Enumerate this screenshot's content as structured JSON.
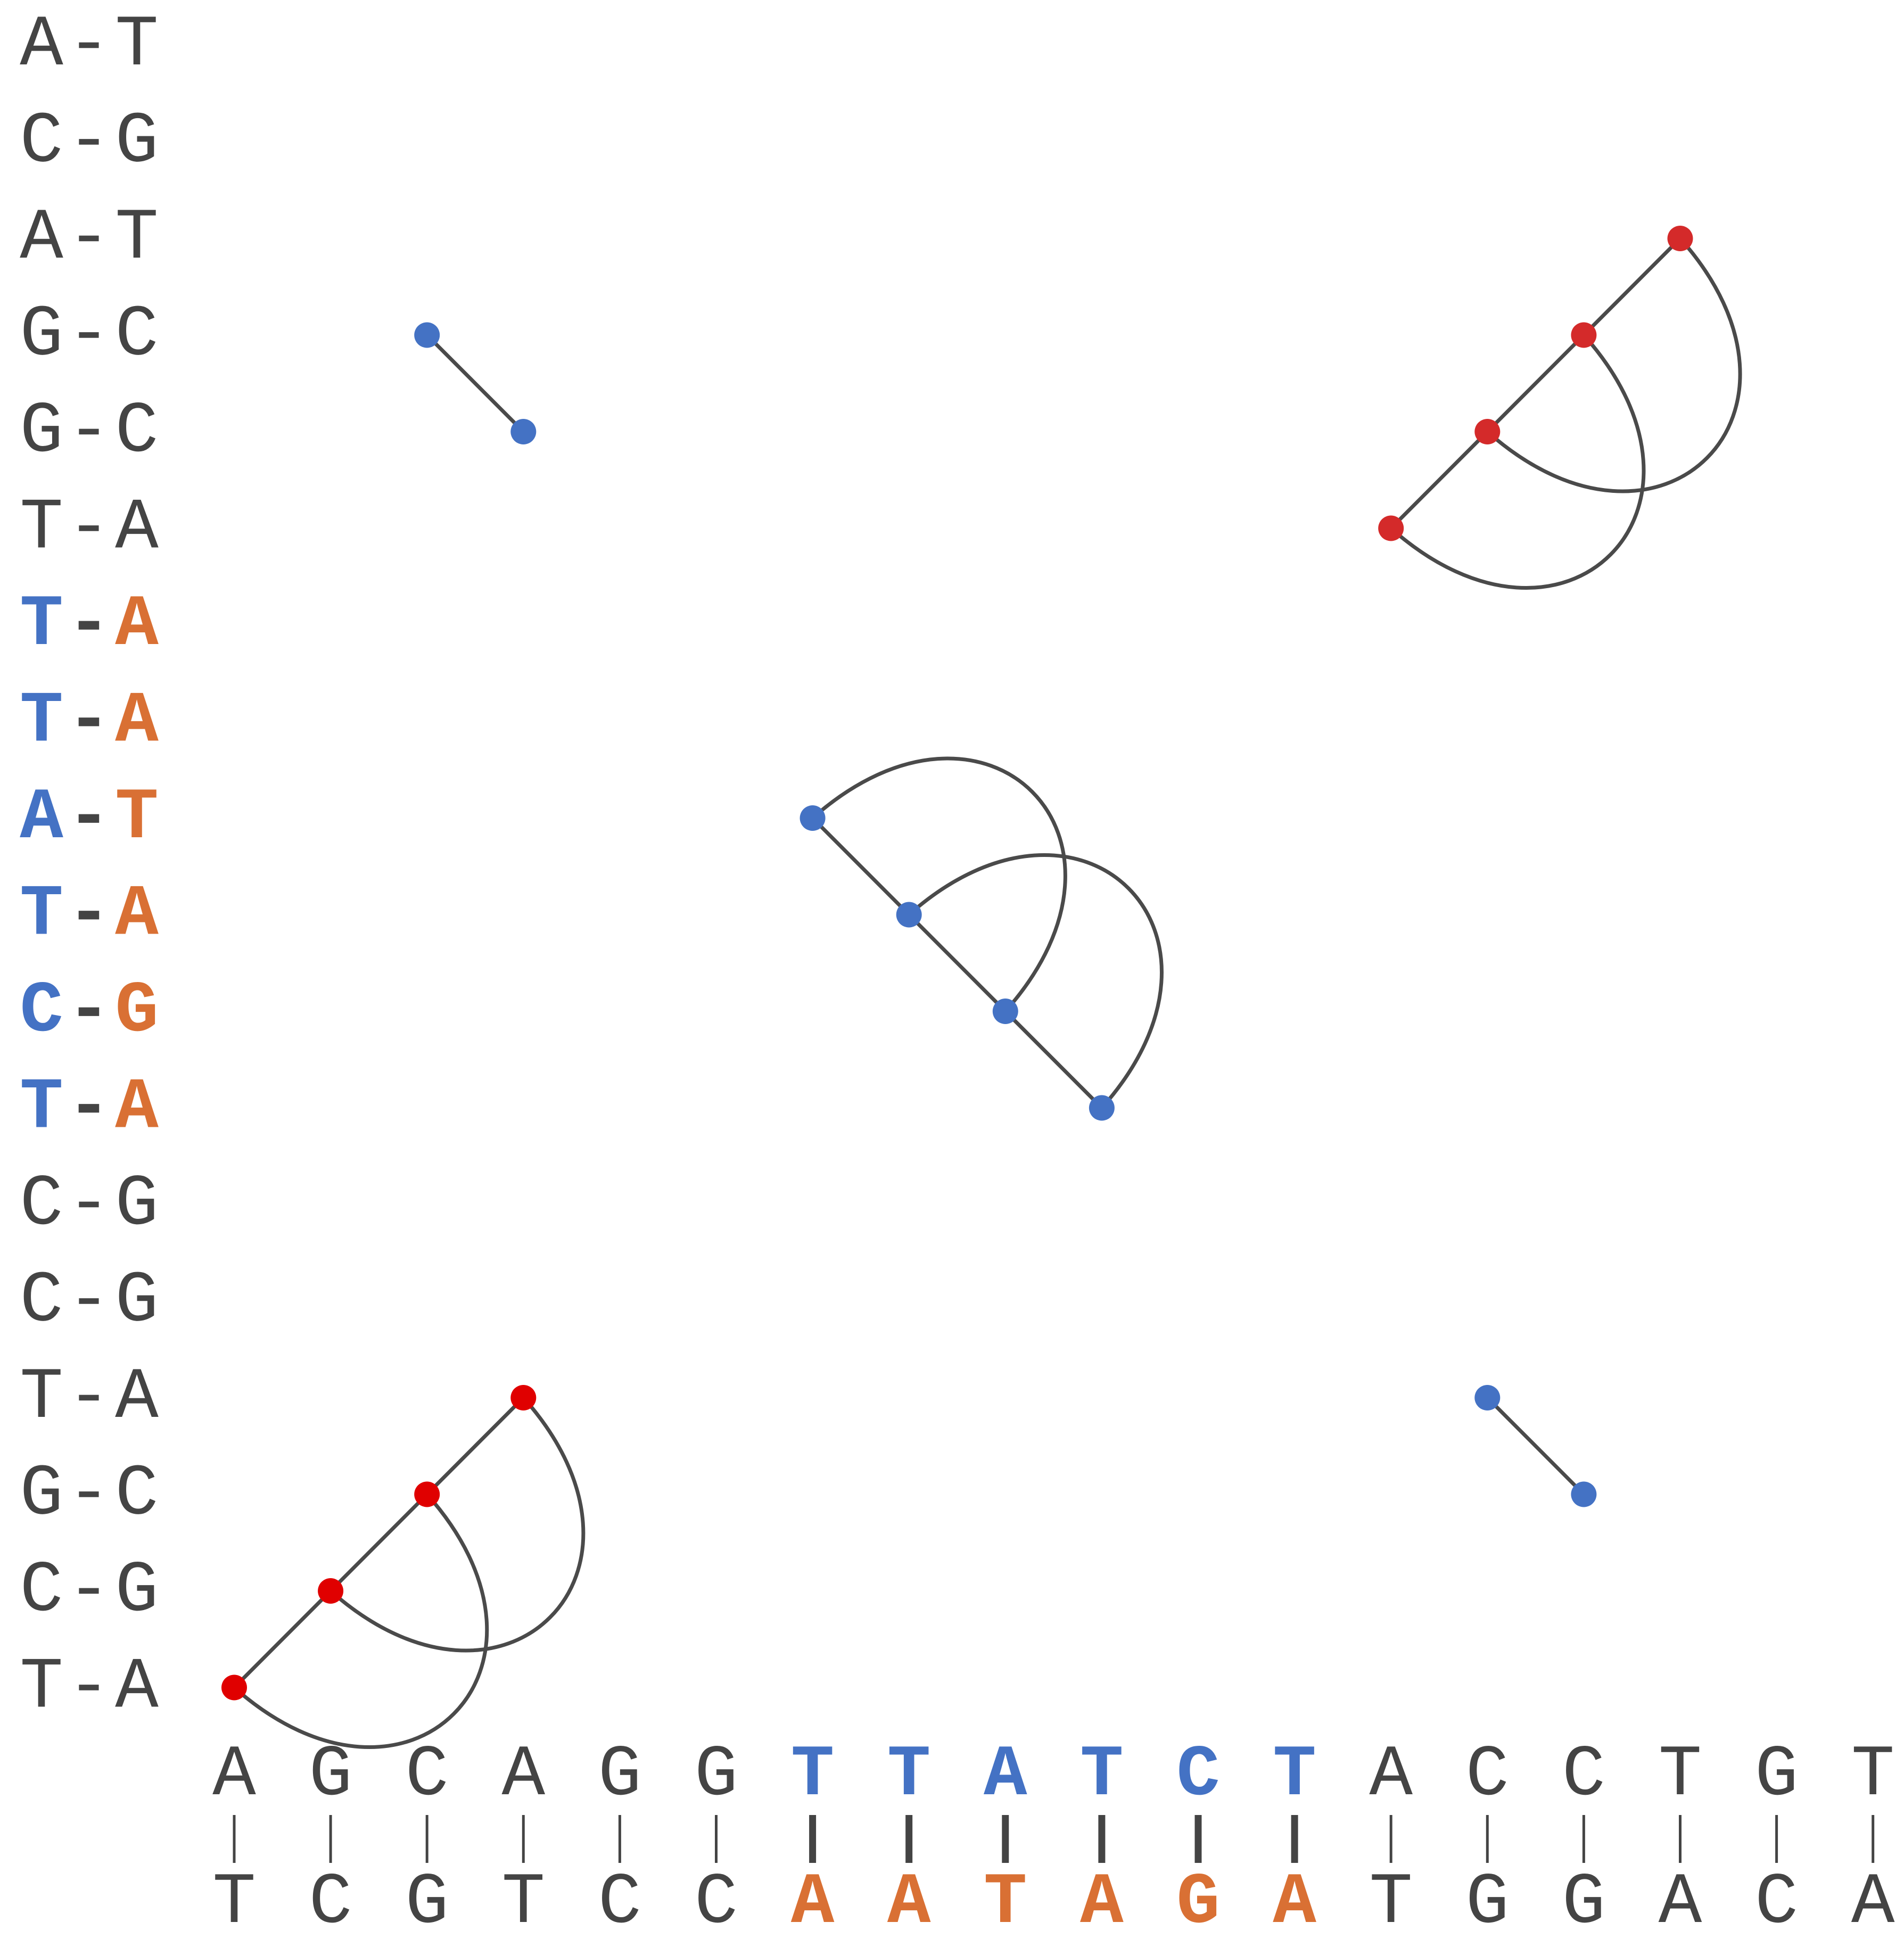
{
  "colors": {
    "text": "#444444",
    "highlight_top": "#4472c4",
    "highlight_bottom": "#d97034",
    "blue_dot": "#4472c4",
    "red_dot": "#d42a2a",
    "bright_red_dot": "#e00000",
    "line": "#4a4a4a"
  },
  "vertical_pairs": [
    {
      "left": "A",
      "dash": "-",
      "right": "T",
      "highlight": false
    },
    {
      "left": "C",
      "dash": "-",
      "right": "G",
      "highlight": false
    },
    {
      "left": "A",
      "dash": "-",
      "right": "T",
      "highlight": false
    },
    {
      "left": "G",
      "dash": "-",
      "right": "C",
      "highlight": false
    },
    {
      "left": "G",
      "dash": "-",
      "right": "C",
      "highlight": false
    },
    {
      "left": "T",
      "dash": "-",
      "right": "A",
      "highlight": false
    },
    {
      "left": "T",
      "dash": "-",
      "right": "A",
      "highlight": true
    },
    {
      "left": "T",
      "dash": "-",
      "right": "A",
      "highlight": true
    },
    {
      "left": "A",
      "dash": "-",
      "right": "T",
      "highlight": true
    },
    {
      "left": "T",
      "dash": "-",
      "right": "A",
      "highlight": true
    },
    {
      "left": "C",
      "dash": "-",
      "right": "G",
      "highlight": true
    },
    {
      "left": "T",
      "dash": "-",
      "right": "A",
      "highlight": true
    },
    {
      "left": "C",
      "dash": "-",
      "right": "G",
      "highlight": false
    },
    {
      "left": "C",
      "dash": "-",
      "right": "G",
      "highlight": false
    },
    {
      "left": "T",
      "dash": "-",
      "right": "A",
      "highlight": false
    },
    {
      "left": "G",
      "dash": "-",
      "right": "C",
      "highlight": false
    },
    {
      "left": "C",
      "dash": "-",
      "right": "G",
      "highlight": false
    },
    {
      "left": "T",
      "dash": "-",
      "right": "A",
      "highlight": false
    }
  ],
  "horizontal_pairs": [
    {
      "top": "A",
      "bar": "|",
      "bottom": "T",
      "highlight": false
    },
    {
      "top": "G",
      "bar": "|",
      "bottom": "C",
      "highlight": false
    },
    {
      "top": "C",
      "bar": "|",
      "bottom": "G",
      "highlight": false
    },
    {
      "top": "A",
      "bar": "|",
      "bottom": "T",
      "highlight": false
    },
    {
      "top": "G",
      "bar": "|",
      "bottom": "C",
      "highlight": false
    },
    {
      "top": "G",
      "bar": "|",
      "bottom": "C",
      "highlight": false
    },
    {
      "top": "T",
      "bar": "|",
      "bottom": "A",
      "highlight": true
    },
    {
      "top": "T",
      "bar": "|",
      "bottom": "A",
      "highlight": true
    },
    {
      "top": "A",
      "bar": "|",
      "bottom": "T",
      "highlight": true
    },
    {
      "top": "T",
      "bar": "|",
      "bottom": "A",
      "highlight": true
    },
    {
      "top": "C",
      "bar": "|",
      "bottom": "G",
      "highlight": true
    },
    {
      "top": "T",
      "bar": "|",
      "bottom": "A",
      "highlight": true
    },
    {
      "top": "A",
      "bar": "|",
      "bottom": "T",
      "highlight": false
    },
    {
      "top": "C",
      "bar": "|",
      "bottom": "G",
      "highlight": false
    },
    {
      "top": "C",
      "bar": "|",
      "bottom": "G",
      "highlight": false
    },
    {
      "top": "T",
      "bar": "|",
      "bottom": "A",
      "highlight": false
    },
    {
      "top": "G",
      "bar": "|",
      "bottom": "C",
      "highlight": false
    },
    {
      "top": "T",
      "bar": "|",
      "bottom": "A",
      "highlight": false
    }
  ],
  "motifs": [
    {
      "color": "blue_dot",
      "points": [
        [
          2,
          3
        ],
        [
          3,
          4
        ]
      ]
    },
    {
      "color": "red_dot",
      "points": [
        [
          15,
          2
        ],
        [
          14,
          3
        ],
        [
          13,
          4
        ],
        [
          12,
          5
        ]
      ],
      "arcs": [
        [
          0,
          2
        ],
        [
          1,
          3
        ]
      ]
    },
    {
      "color": "blue_dot",
      "points": [
        [
          6,
          8
        ],
        [
          7,
          9
        ],
        [
          8,
          10
        ],
        [
          9,
          11
        ]
      ],
      "arcs": [
        [
          0,
          2
        ],
        [
          1,
          3
        ]
      ]
    },
    {
      "color": "bright_red_dot",
      "points": [
        [
          3,
          14
        ],
        [
          2,
          15
        ],
        [
          1,
          16
        ],
        [
          0,
          17
        ]
      ],
      "arcs": [
        [
          0,
          2
        ],
        [
          1,
          3
        ]
      ]
    },
    {
      "color": "blue_dot",
      "points": [
        [
          13,
          14
        ],
        [
          14,
          15
        ]
      ]
    }
  ]
}
